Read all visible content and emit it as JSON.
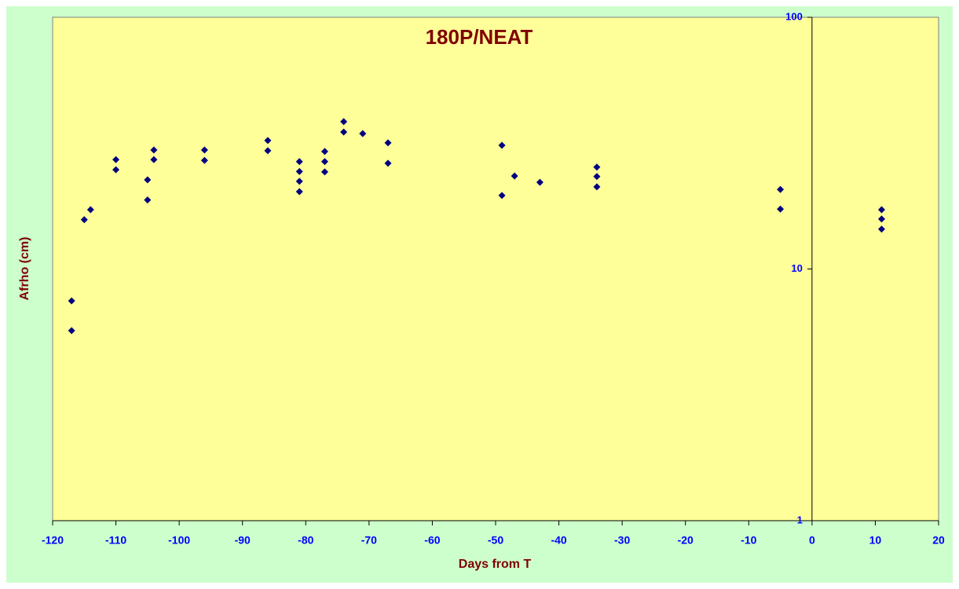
{
  "chart_data": {
    "type": "scatter",
    "title": "180P/NEAT",
    "x_label": "Days from T",
    "y_label": "Afrho (cm)",
    "log_y": true,
    "color": "#000080",
    "xlim": [
      -120,
      20
    ],
    "xticks": [
      -120,
      -110,
      -100,
      -90,
      -80,
      -70,
      -60,
      -50,
      -40,
      -30,
      -20,
      -10,
      0,
      10,
      20
    ],
    "ylim": [
      1,
      100
    ],
    "yticks": [
      1,
      10,
      100
    ],
    "x": [
      -117,
      -117,
      -115,
      -114,
      -110,
      -110,
      -105,
      -105,
      -104,
      -104,
      -96,
      -96,
      -86,
      -86,
      -81,
      -81,
      -81,
      -81,
      -77,
      -77,
      -77,
      -74,
      -74,
      -71,
      -67,
      -67,
      -49,
      -49,
      -47,
      -43,
      -34,
      -34,
      -34,
      -5,
      -5,
      11,
      11,
      11
    ],
    "values": [
      7.47,
      5.69,
      15.7,
      17.2,
      27.2,
      24.8,
      22.6,
      18.8,
      29.7,
      27.2,
      29.7,
      27.0,
      32.4,
      29.5,
      26.7,
      24.4,
      22.3,
      20.3,
      29.3,
      26.7,
      24.3,
      38.5,
      35.0,
      34.5,
      31.7,
      26.3,
      31.0,
      19.6,
      23.4,
      22.1,
      25.4,
      23.3,
      21.2,
      20.7,
      17.3,
      17.2,
      15.8,
      14.4
    ]
  }
}
